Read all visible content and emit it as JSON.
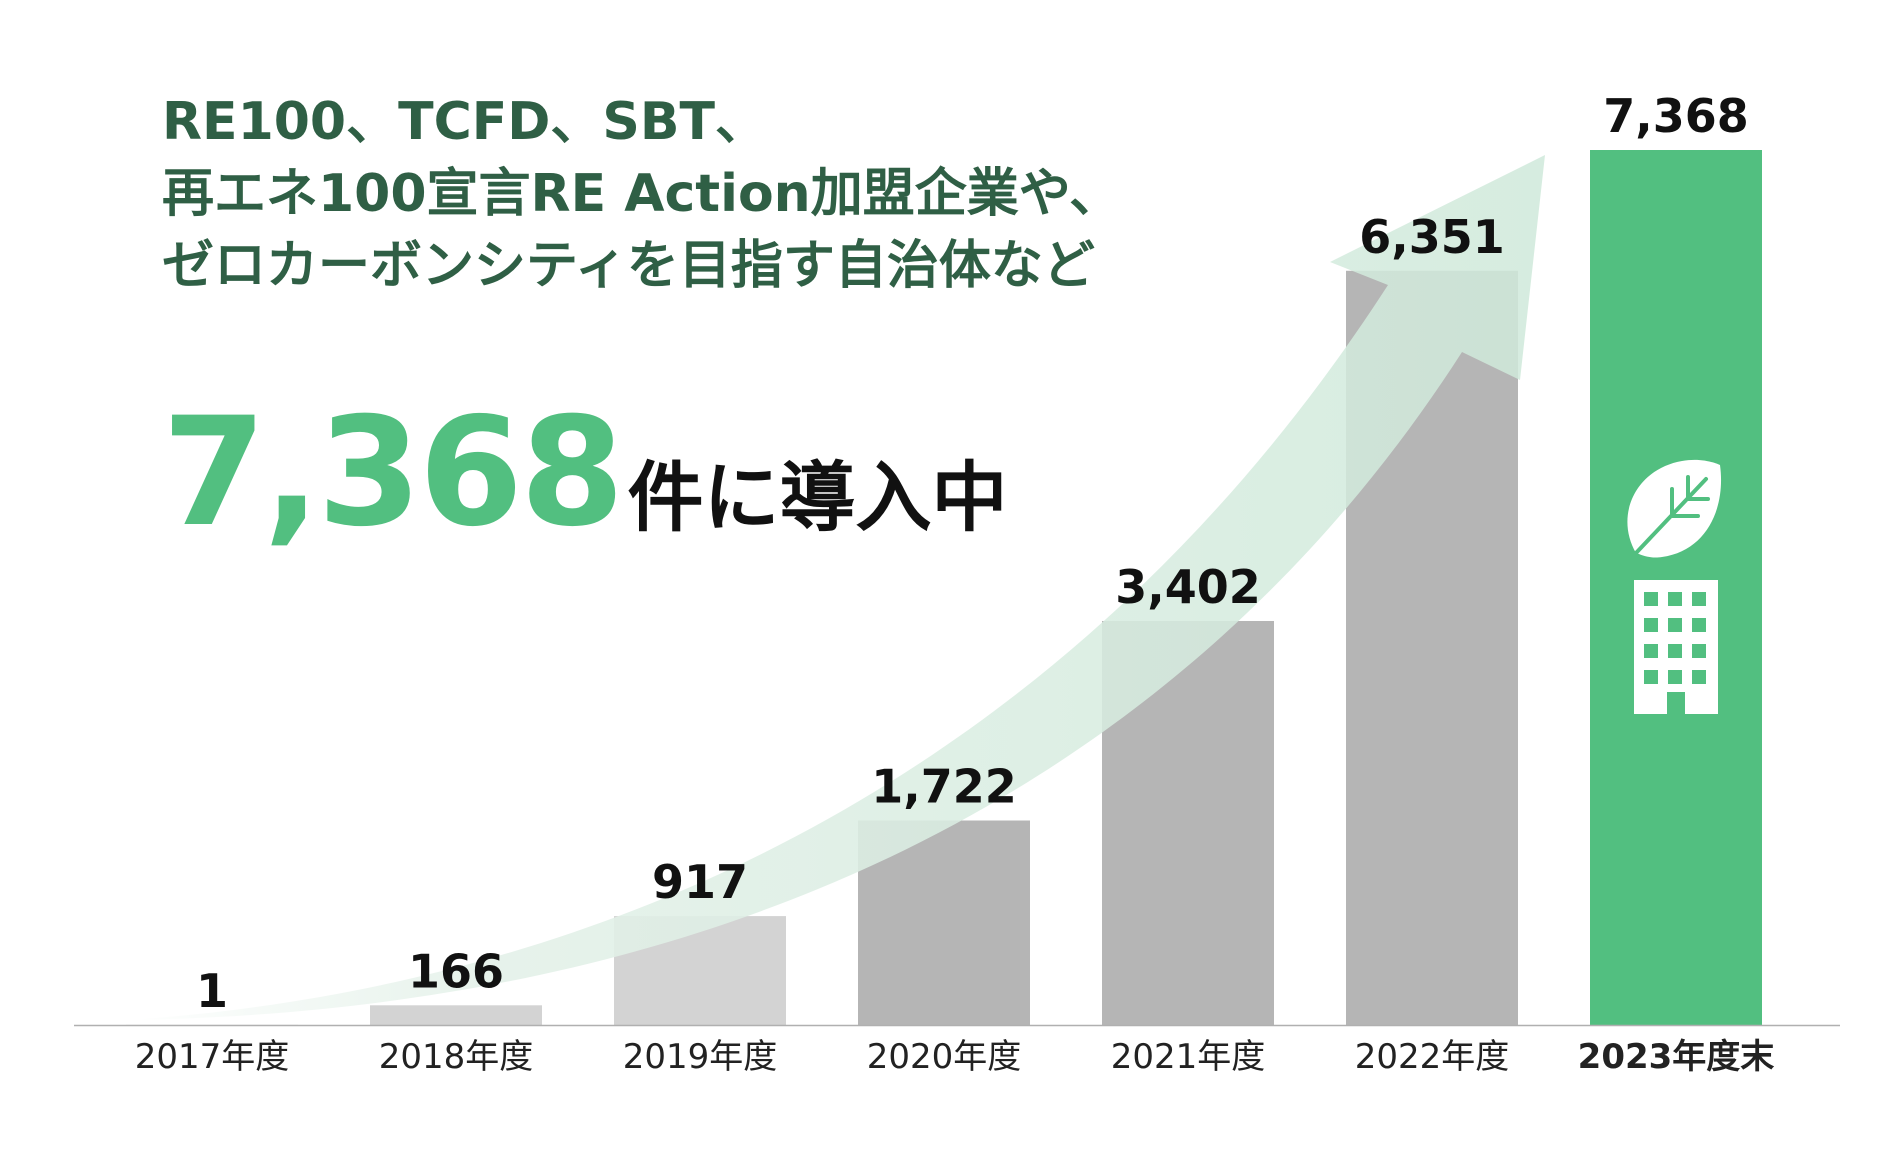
{
  "headline": {
    "line1": "RE100、TCFD、SBT、",
    "line2": "再エネ100宣言RE Action加盟企業や、",
    "line3": "ゼロカーボンシティを目指す自治体など"
  },
  "highlight": {
    "number": "7,368",
    "suffix": "件に導入中"
  },
  "colors": {
    "accent": "#52bf80",
    "headline": "#2f5f45",
    "bar_light": "#d3d3d3",
    "bar_dark": "#b5b5b5",
    "arrow": "#d5ebdf",
    "icon": "#ffffff"
  },
  "icons": [
    "leaf-icon",
    "building-icon"
  ],
  "chart_data": {
    "type": "bar",
    "categories": [
      "2017年度",
      "2018年度",
      "2019年度",
      "2020年度",
      "2021年度",
      "2022年度",
      "2023年度末"
    ],
    "values": [
      1,
      166,
      917,
      1722,
      3402,
      6351,
      7368
    ],
    "value_labels": [
      "1",
      "166",
      "917",
      "1,722",
      "3,402",
      "6,351",
      "7,368"
    ],
    "highlight_index": 6,
    "ylim": [
      0,
      7368
    ],
    "grid": false,
    "legend": "none",
    "title": "",
    "xlabel": "",
    "ylabel": ""
  }
}
